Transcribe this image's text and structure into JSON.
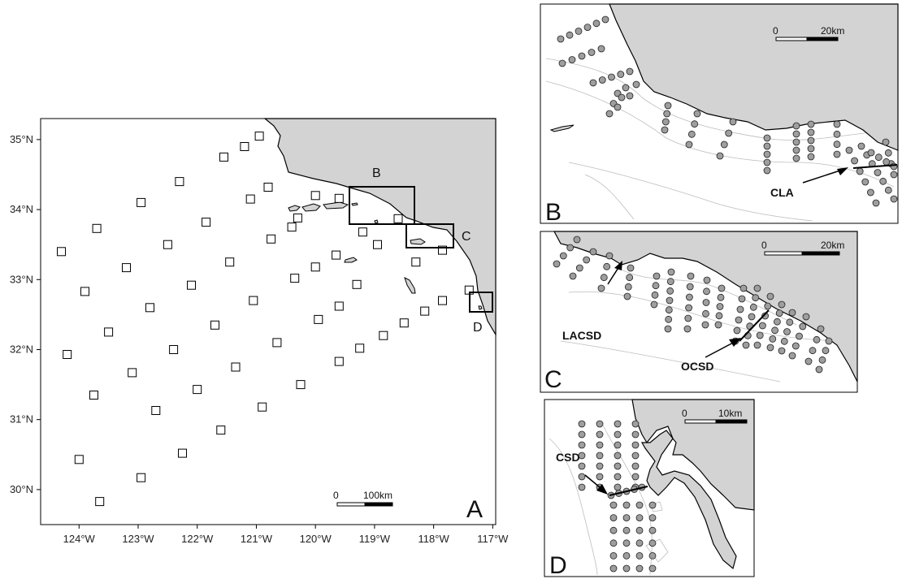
{
  "map_a": {
    "panel_label": "A",
    "lon_ticks": [
      "124°W",
      "123°W",
      "122°W",
      "121°W",
      "120°W",
      "119°W",
      "118°W",
      "117°W"
    ],
    "lat_ticks": [
      "35°N",
      "34°N",
      "33°N",
      "32°N",
      "31°N",
      "30°N"
    ],
    "scale": {
      "zero": "0",
      "distance": "100km"
    },
    "inset_labels": [
      "B",
      "C",
      "D"
    ]
  },
  "panel_b": {
    "panel_label": "B",
    "scale": {
      "zero": "0",
      "distance": "20km"
    },
    "outfall": "CLA"
  },
  "panel_c": {
    "panel_label": "C",
    "scale": {
      "zero": "0",
      "distance": "20km"
    },
    "outfalls": [
      "LACSD",
      "OCSD"
    ]
  },
  "panel_d": {
    "panel_label": "D",
    "scale": {
      "zero": "0",
      "distance": "10km"
    },
    "outfall": "CSD"
  },
  "colors": {
    "land": "#d3d3d3",
    "station_fill": "#9e9e9e",
    "square_fill": "#ffffff"
  },
  "station_grid_a": [
    {
      "line": 1,
      "points": [
        [
          -124.3,
          33.4
        ],
        [
          -123.9,
          32.83
        ],
        [
          -123.5,
          32.25
        ],
        [
          -123.1,
          31.67
        ],
        [
          -122.7,
          31.13
        ],
        [
          -122.25,
          30.52
        ]
      ]
    },
    {
      "line": 2,
      "points": [
        [
          -123.7,
          33.73
        ],
        [
          -123.2,
          33.17
        ],
        [
          -122.8,
          32.6
        ],
        [
          -122.4,
          32.0
        ],
        [
          -122.0,
          31.43
        ],
        [
          -121.6,
          30.85
        ]
      ]
    },
    {
      "line": 3,
      "points": [
        [
          -122.95,
          34.1
        ],
        [
          -122.5,
          33.5
        ],
        [
          -122.1,
          32.92
        ],
        [
          -121.7,
          32.35
        ],
        [
          -121.35,
          31.75
        ],
        [
          -120.9,
          31.18
        ]
      ]
    },
    {
      "line": 4,
      "points": [
        [
          -122.3,
          34.4
        ],
        [
          -121.85,
          33.82
        ],
        [
          -121.45,
          33.25
        ],
        [
          -121.05,
          32.7
        ],
        [
          -120.65,
          32.1
        ],
        [
          -120.25,
          31.5
        ]
      ]
    },
    {
      "line": 5,
      "points": [
        [
          -121.55,
          34.75
        ],
        [
          -121.1,
          34.15
        ],
        [
          -120.75,
          33.58
        ],
        [
          -120.35,
          33.02
        ],
        [
          -119.95,
          32.43
        ],
        [
          -119.6,
          31.83
        ]
      ]
    },
    {
      "line": 6,
      "points": [
        [
          -121.2,
          34.9
        ],
        [
          -120.8,
          34.32
        ],
        [
          -120.4,
          33.75
        ],
        [
          -120.0,
          33.18
        ],
        [
          -119.6,
          32.62
        ],
        [
          -119.25,
          32.02
        ]
      ]
    },
    {
      "line": 7,
      "points": [
        [
          -120.95,
          35.05
        ],
        [
          -120.3,
          33.88
        ],
        [
          -119.65,
          33.35
        ],
        [
          -119.3,
          32.93
        ],
        [
          -118.85,
          32.2
        ],
        [
          -118.5,
          32.38
        ]
      ]
    },
    {
      "line": 8,
      "points": [
        [
          -120.0,
          34.2
        ],
        [
          -119.6,
          34.16
        ],
        [
          -119.2,
          33.68
        ],
        [
          -118.95,
          33.5
        ],
        [
          -118.6,
          33.87
        ],
        [
          -118.3,
          33.25
        ],
        [
          -118.15,
          32.55
        ],
        [
          -117.85,
          32.7
        ],
        [
          -117.85,
          33.42
        ],
        [
          -117.4,
          32.85
        ]
      ]
    },
    {
      "line": 9,
      "points": [
        [
          -124.0,
          30.43
        ],
        [
          -123.65,
          29.83
        ],
        [
          -122.95,
          30.17
        ],
        [
          -123.75,
          31.35
        ],
        [
          -124.2,
          31.93
        ]
      ]
    }
  ]
}
